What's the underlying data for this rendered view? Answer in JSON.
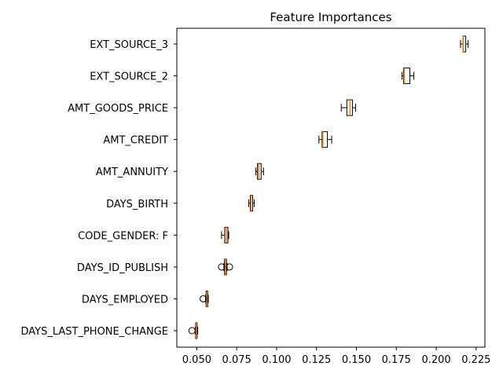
{
  "chart_data": {
    "type": "boxplot",
    "orientation": "horizontal",
    "title": "Feature Importances",
    "xlabel": "",
    "ylabel": "",
    "xlim": [
      0.0375,
      0.2305
    ],
    "xticks": [
      0.05,
      0.075,
      0.1,
      0.125,
      0.15,
      0.175,
      0.2,
      0.225
    ],
    "xtick_labels": [
      "0.050",
      "0.075",
      "0.100",
      "0.125",
      "0.150",
      "0.175",
      "0.200",
      "0.225"
    ],
    "grid": false,
    "colors": {
      "median": "#ff7f0e",
      "box_edge": "#000000",
      "box_fill": "#ffffff"
    },
    "features": [
      {
        "name": "EXT_SOURCE_3",
        "whisker_low": 0.2152,
        "q1": 0.2168,
        "median": 0.217,
        "q3": 0.2185,
        "whisker_high": 0.22,
        "outliers": []
      },
      {
        "name": "EXT_SOURCE_2",
        "whisker_low": 0.1785,
        "q1": 0.1795,
        "median": 0.18,
        "q3": 0.1835,
        "whisker_high": 0.186,
        "outliers": []
      },
      {
        "name": "AMT_GOODS_PRICE",
        "whisker_low": 0.1405,
        "q1": 0.144,
        "median": 0.146,
        "q3": 0.1475,
        "whisker_high": 0.1495,
        "outliers": []
      },
      {
        "name": "AMT_CREDIT",
        "whisker_low": 0.1265,
        "q1": 0.1285,
        "median": 0.129,
        "q3": 0.1318,
        "whisker_high": 0.1345,
        "outliers": []
      },
      {
        "name": "AMT_ANNUITY",
        "whisker_low": 0.087,
        "q1": 0.088,
        "median": 0.0888,
        "q3": 0.0903,
        "whisker_high": 0.0918,
        "outliers": []
      },
      {
        "name": "DAYS_BIRTH",
        "whisker_low": 0.0825,
        "q1": 0.0835,
        "median": 0.084,
        "q3": 0.085,
        "whisker_high": 0.086,
        "outliers": []
      },
      {
        "name": "CODE_GENDER: F",
        "whisker_low": 0.0655,
        "q1": 0.0675,
        "median": 0.0685,
        "q3": 0.0695,
        "whisker_high": 0.07,
        "outliers": []
      },
      {
        "name": "DAYS_ID_PUBLISH",
        "whisker_low": 0.067,
        "q1": 0.0674,
        "median": 0.068,
        "q3": 0.0686,
        "whisker_high": 0.069,
        "outliers": [
          0.0655,
          0.0705
        ]
      },
      {
        "name": "DAYS_EMPLOYED",
        "whisker_low": 0.0555,
        "q1": 0.0558,
        "median": 0.0563,
        "q3": 0.0568,
        "whisker_high": 0.0572,
        "outliers": [
          0.054
        ]
      },
      {
        "name": "DAYS_LAST_PHONE_CHANGE",
        "whisker_low": 0.049,
        "q1": 0.0493,
        "median": 0.0497,
        "q3": 0.0502,
        "whisker_high": 0.0506,
        "outliers": [
          0.047
        ]
      }
    ]
  }
}
